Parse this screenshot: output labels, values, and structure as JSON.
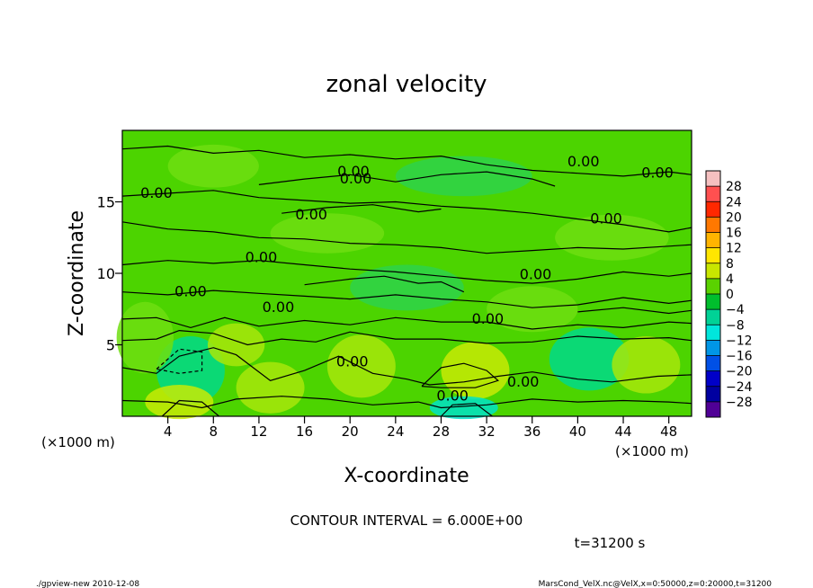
{
  "chart_data": {
    "type": "heatmap",
    "title": "zonal velocity",
    "xlabel": "X-coordinate",
    "ylabel": "Z-coordinate",
    "x_unit": "(×1000 m)",
    "y_unit": "(×1000 m)",
    "xlim": [
      0,
      50
    ],
    "ylim": [
      0,
      20
    ],
    "x_ticks": [
      "4",
      "8",
      "12",
      "16",
      "20",
      "24",
      "28",
      "32",
      "36",
      "40",
      "44",
      "48"
    ],
    "y_ticks": [
      "5",
      "10",
      "15"
    ],
    "contour_interval_text": "CONTOUR INTERVAL = 6.000E+00",
    "time_text": "t=31200 s",
    "contour_labels": [
      "0.00",
      "0.00",
      "0.00",
      "0.00",
      "0.00",
      "0.00",
      "0.00",
      "0.00",
      "0.00",
      "0.00",
      "0.00",
      "0.00",
      "0.00",
      "0.00",
      "0.00"
    ],
    "colorbar": {
      "levels": [
        "28",
        "24",
        "20",
        "16",
        "12",
        "8",
        "4",
        "0",
        "−4",
        "−8",
        "−12",
        "−16",
        "−20",
        "−24",
        "−28"
      ],
      "colors": [
        "#f5c0c0",
        "#ff5050",
        "#ff2800",
        "#ff7800",
        "#ffb400",
        "#ffe600",
        "#c8e600",
        "#5ad200",
        "#00be2d",
        "#00d296",
        "#00e6dc",
        "#0096e6",
        "#0050e6",
        "#0000c8",
        "#0000a0",
        "#500096"
      ]
    },
    "field_colors": {
      "background": "#4cd400",
      "weak_positive": "#6ede10",
      "positive": "#a8e60a",
      "strong_positive": "#c8ea05",
      "weak_negative": "#2ed24a",
      "negative": "#00d98a",
      "strong_negative": "#00e2c8"
    },
    "grid": false,
    "legend_placement": "right"
  },
  "footer": {
    "left": "./gpview-new   2010-12-08",
    "right": "MarsCond_VelX.nc@VelX,x=0:50000,z=0:20000,t=31200"
  }
}
